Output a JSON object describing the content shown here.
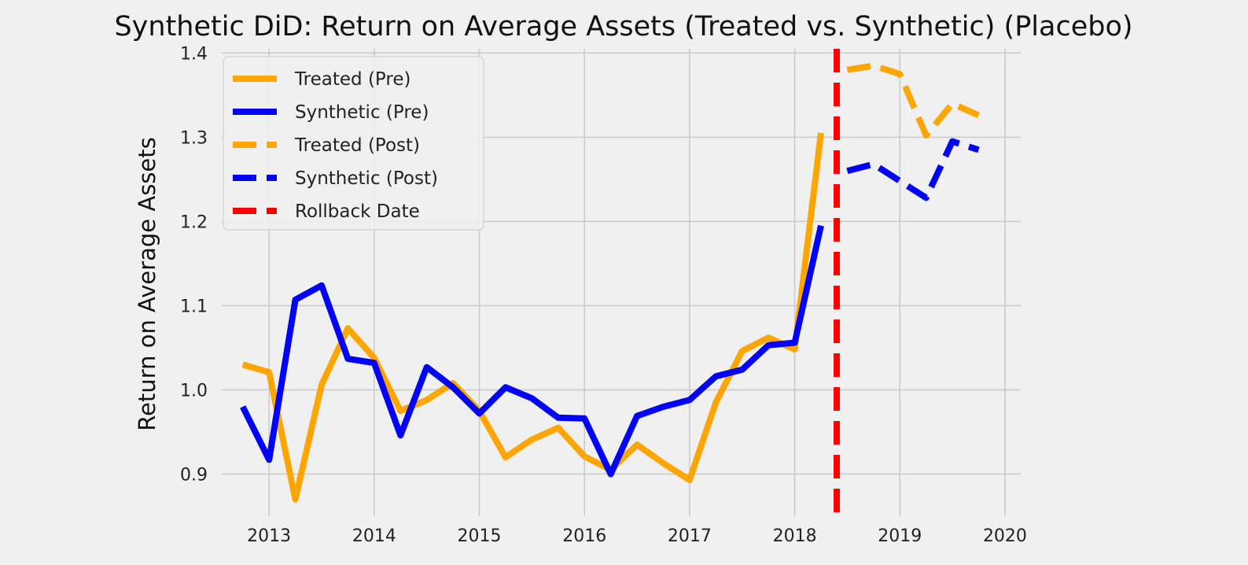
{
  "chart_data": {
    "type": "line",
    "title": "Synthetic DiD: Return on Average Assets (Treated vs. Synthetic) (Placebo)",
    "xlabel": "",
    "ylabel": "Return on Average Assets",
    "xlim": [
      2012.55,
      2020.15
    ],
    "ylim": [
      0.85,
      1.405
    ],
    "x_ticks": [
      2013,
      2014,
      2015,
      2016,
      2017,
      2018,
      2019,
      2020
    ],
    "x_tick_labels": [
      "2013",
      "2014",
      "2015",
      "2016",
      "2017",
      "2018",
      "2019",
      "2020"
    ],
    "y_ticks": [
      0.9,
      1.0,
      1.1,
      1.2,
      1.3,
      1.4
    ],
    "y_tick_labels": [
      "0.9",
      "1.0",
      "1.1",
      "1.2",
      "1.3",
      "1.4"
    ],
    "grid": true,
    "legend_position": "top-left",
    "rollback_date": 2018.4,
    "series": [
      {
        "name": "Treated (Pre)",
        "color": "#ffa500",
        "style": "solid",
        "x": [
          2012.75,
          2013.0,
          2013.25,
          2013.5,
          2013.75,
          2014.0,
          2014.25,
          2014.5,
          2014.75,
          2015.0,
          2015.25,
          2015.5,
          2015.75,
          2016.0,
          2016.25,
          2016.5,
          2016.75,
          2017.0,
          2017.25,
          2017.5,
          2017.75,
          2018.0,
          2018.25
        ],
        "y": [
          1.03,
          1.021,
          0.87,
          1.006,
          1.073,
          1.038,
          0.975,
          0.988,
          1.008,
          0.975,
          0.92,
          0.941,
          0.955,
          0.921,
          0.905,
          0.935,
          0.913,
          0.893,
          0.985,
          1.046,
          1.062,
          1.048,
          1.305
        ]
      },
      {
        "name": "Synthetic (Pre)",
        "color": "#0000ff",
        "style": "solid",
        "x": [
          2012.75,
          2013.0,
          2013.25,
          2013.5,
          2013.75,
          2014.0,
          2014.25,
          2014.5,
          2014.75,
          2015.0,
          2015.25,
          2015.5,
          2015.75,
          2016.0,
          2016.25,
          2016.5,
          2016.75,
          2017.0,
          2017.25,
          2017.5,
          2017.75,
          2018.0,
          2018.25
        ],
        "y": [
          0.98,
          0.917,
          1.107,
          1.124,
          1.037,
          1.032,
          0.946,
          1.027,
          1.003,
          0.972,
          1.003,
          0.99,
          0.967,
          0.966,
          0.9,
          0.969,
          0.98,
          0.988,
          1.016,
          1.024,
          1.053,
          1.056,
          1.195
        ]
      },
      {
        "name": "Treated (Post)",
        "color": "#ffa500",
        "style": "dashed",
        "x": [
          2018.5,
          2018.75,
          2019.0,
          2019.25,
          2019.5,
          2019.75
        ],
        "y": [
          1.38,
          1.385,
          1.375,
          1.302,
          1.34,
          1.326
        ]
      },
      {
        "name": "Synthetic (Post)",
        "color": "#0000ff",
        "style": "dashed",
        "x": [
          2018.5,
          2018.75,
          2019.0,
          2019.25,
          2019.5,
          2019.75
        ],
        "y": [
          1.26,
          1.268,
          1.248,
          1.228,
          1.295,
          1.285
        ]
      }
    ],
    "vline": {
      "name": "Rollback Date",
      "color": "#ff0000",
      "style": "dashed",
      "x": 2018.4
    },
    "legend": [
      "Treated (Pre)",
      "Synthetic (Pre)",
      "Treated (Post)",
      "Synthetic (Post)",
      "Rollback Date"
    ]
  }
}
